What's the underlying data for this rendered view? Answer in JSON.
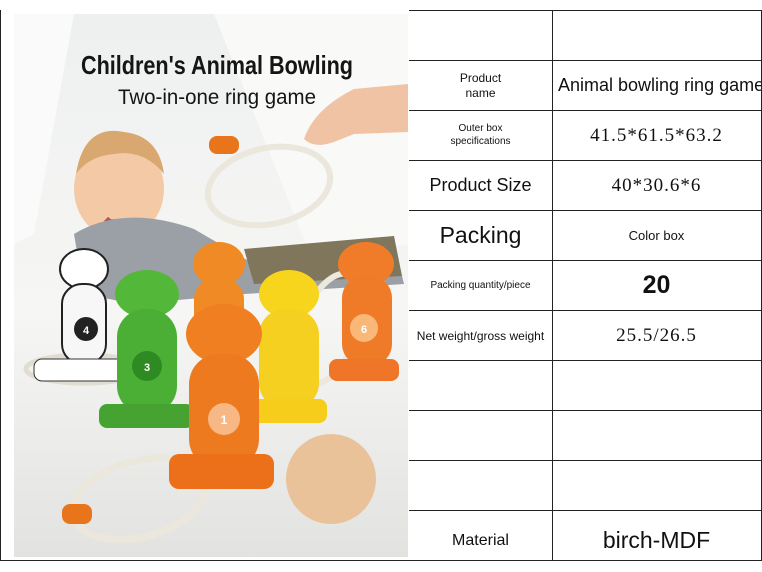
{
  "image": {
    "title": "Children's Animal Bowling",
    "subtitle": "Two-in-one ring game",
    "pin_numbers": [
      "4",
      "3",
      "1",
      "6"
    ]
  },
  "table": {
    "rows": [
      [
        "Product name",
        "Animal bowling ring game"
      ],
      [
        "Outer box specifications",
        "41.5*61.5*63.2"
      ],
      [
        "Product Size",
        "40*30.6*6"
      ],
      [
        "Packing",
        "Color box"
      ],
      [
        "Packing quantity/piece",
        "20"
      ],
      [
        "Net weight/gross weight",
        "25.5/26.5"
      ],
      [
        "Material",
        "birch-MDF"
      ]
    ]
  }
}
